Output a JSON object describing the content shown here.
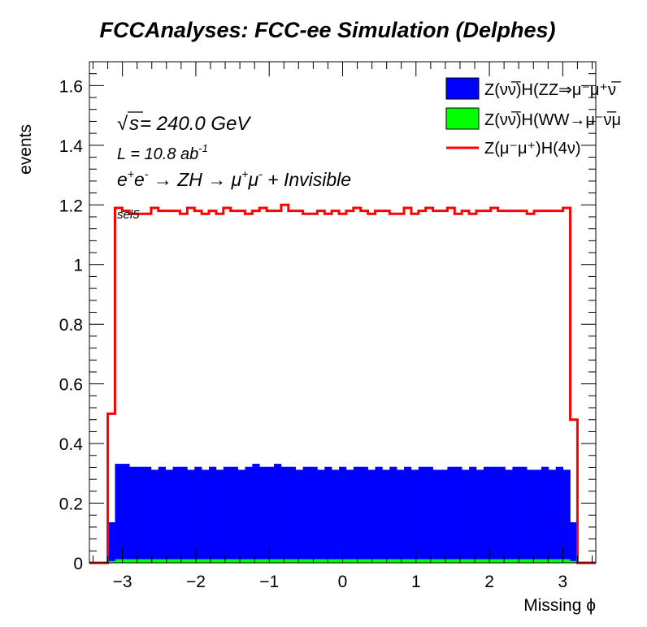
{
  "chart_data": {
    "type": "histogram",
    "title": "FCCAnalyses: FCC-ee Simulation (Delphes)",
    "xlabel": "Missing ϕ",
    "ylabel": "events",
    "xlim": [
      -3.45,
      3.45
    ],
    "ylim": [
      0,
      1.68
    ],
    "xticks": [
      -3,
      -2,
      -1,
      0,
      1,
      2,
      3
    ],
    "xtick_labels": [
      "−3",
      "−2",
      "−1",
      "0",
      "1",
      "2",
      "3"
    ],
    "yticks": [
      0,
      0.2,
      0.4,
      0.6,
      0.8,
      1,
      1.2,
      1.4,
      1.6
    ],
    "ytick_labels": [
      "0",
      "0.2",
      "0.4",
      "0.6",
      "0.8",
      "1",
      "1.2",
      "1.4",
      "1.6"
    ],
    "annotations": {
      "sqrt_symbol": "√",
      "sqrt_s": "s",
      "energy_rest": " = 240.0 GeV",
      "lumi_base": "L = 10.8 ab",
      "lumi_exp": "-1",
      "process_parts": [
        "e",
        "+",
        "e",
        "-",
        " → ZH → μ",
        "+",
        "μ",
        "-",
        " + Invisible"
      ],
      "selection": "sel5"
    },
    "legend_position": "top-right",
    "bin_edges": [
      -3.2,
      3.2
    ],
    "series": [
      {
        "name": "Z(νν̅)H(ZZ⇒μ⁻μ⁺ν̅",
        "style": "stacked-fill",
        "color": "#0000ff",
        "values": [
          0.13,
          0.32,
          0.32,
          0.31,
          0.31,
          0.31,
          0.3,
          0.31,
          0.3,
          0.31,
          0.31,
          0.3,
          0.31,
          0.3,
          0.31,
          0.3,
          0.31,
          0.31,
          0.3,
          0.31,
          0.32,
          0.31,
          0.31,
          0.32,
          0.31,
          0.31,
          0.3,
          0.31,
          0.31,
          0.3,
          0.31,
          0.3,
          0.31,
          0.3,
          0.31,
          0.31,
          0.3,
          0.31,
          0.3,
          0.31,
          0.3,
          0.31,
          0.3,
          0.31,
          0.31,
          0.3,
          0.3,
          0.31,
          0.31,
          0.3,
          0.31,
          0.3,
          0.31,
          0.31,
          0.31,
          0.3,
          0.31,
          0.31,
          0.3,
          0.3,
          0.31,
          0.3,
          0.31,
          0.3,
          0.13
        ]
      },
      {
        "name": "Z(νν̅)H(WW→μ⁻ν̅μ",
        "style": "stacked-fill",
        "color": "#00ff00",
        "values": [
          0.006,
          0.012,
          0.012,
          0.012,
          0.012,
          0.012,
          0.012,
          0.012,
          0.012,
          0.012,
          0.012,
          0.012,
          0.012,
          0.012,
          0.012,
          0.012,
          0.012,
          0.012,
          0.012,
          0.012,
          0.012,
          0.012,
          0.012,
          0.012,
          0.012,
          0.012,
          0.012,
          0.012,
          0.012,
          0.012,
          0.012,
          0.012,
          0.012,
          0.012,
          0.012,
          0.012,
          0.012,
          0.012,
          0.012,
          0.012,
          0.012,
          0.012,
          0.012,
          0.012,
          0.012,
          0.012,
          0.012,
          0.012,
          0.012,
          0.012,
          0.012,
          0.012,
          0.012,
          0.012,
          0.012,
          0.012,
          0.012,
          0.012,
          0.012,
          0.012,
          0.012,
          0.012,
          0.012,
          0.012,
          0.006
        ]
      },
      {
        "name": "Z(μ⁻μ⁺)H(4ν)",
        "style": "line",
        "color": "#ff0000",
        "values": [
          0.5,
          1.19,
          1.18,
          1.17,
          1.17,
          1.17,
          1.19,
          1.18,
          1.18,
          1.18,
          1.17,
          1.19,
          1.18,
          1.17,
          1.18,
          1.17,
          1.19,
          1.18,
          1.18,
          1.17,
          1.18,
          1.19,
          1.18,
          1.18,
          1.2,
          1.18,
          1.18,
          1.17,
          1.17,
          1.18,
          1.17,
          1.18,
          1.17,
          1.18,
          1.19,
          1.18,
          1.17,
          1.18,
          1.18,
          1.17,
          1.17,
          1.19,
          1.17,
          1.18,
          1.19,
          1.18,
          1.18,
          1.19,
          1.17,
          1.18,
          1.17,
          1.18,
          1.18,
          1.19,
          1.18,
          1.18,
          1.18,
          1.18,
          1.17,
          1.18,
          1.18,
          1.18,
          1.18,
          1.19,
          0.48
        ]
      }
    ]
  }
}
